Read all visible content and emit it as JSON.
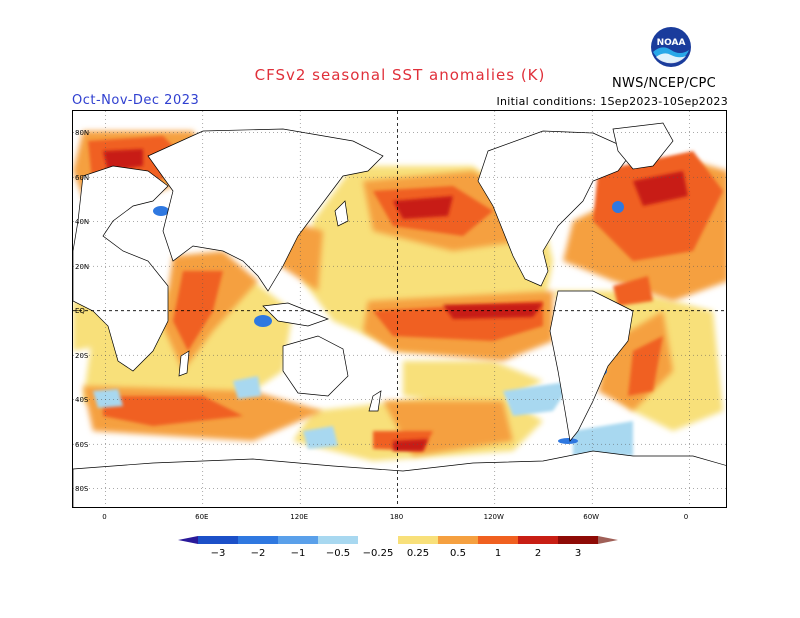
{
  "title": "CFSv2 seasonal SST anomalies (K)",
  "season": "Oct-Nov-Dec 2023",
  "initial_conditions": "Initial conditions: 1Sep2023-10Sep2023",
  "agency": "NWS/NCEP/CPC",
  "logo_text": "NOAA",
  "lat_labels": [
    "80N",
    "60N",
    "40N",
    "20N",
    "EQ",
    "20S",
    "40S",
    "60S",
    "80S"
  ],
  "lon_labels": [
    "0",
    "60E",
    "120E",
    "180",
    "120W",
    "60W",
    "0"
  ],
  "colorbar": {
    "labels": [
      "−3",
      "−2",
      "−1",
      "−0.5",
      "−0.25",
      "0.25",
      "0.5",
      "1",
      "2",
      "3"
    ],
    "colors": [
      "#2a1a9a",
      "#1c50c8",
      "#2f78e0",
      "#5aa0ea",
      "#a8d8f0",
      "#ffffff",
      "#f8e07a",
      "#f5a040",
      "#f06020",
      "#c81e14",
      "#8e0a06",
      "#a06058"
    ]
  }
}
